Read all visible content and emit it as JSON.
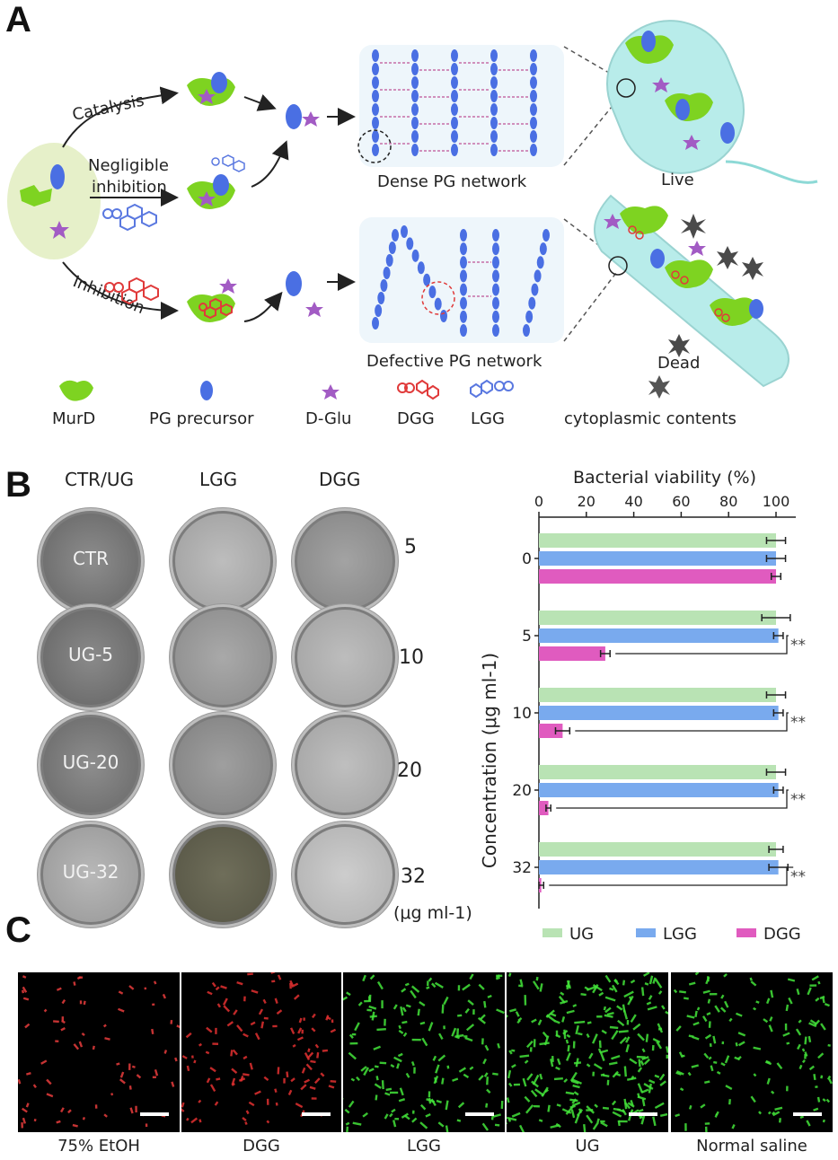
{
  "panelA": {
    "letter": "A",
    "catalysis_label": "Catalysis",
    "negligible_label_1": "Negligible",
    "negligible_label_2": "inhibition",
    "inhibition_label": "Inhibition",
    "dense_network_label": "Dense PG network",
    "defective_network_label": "Defective PG network",
    "live_label": "Live",
    "dead_label": "Dead",
    "legend": [
      {
        "icon": "murd-icon",
        "label": "MurD"
      },
      {
        "icon": "pg-precursor-icon",
        "label": "PG precursor"
      },
      {
        "icon": "d-glu-icon",
        "label": "D-Glu"
      },
      {
        "icon": "dgg-icon",
        "label": "DGG"
      },
      {
        "icon": "lgg-icon",
        "label": "LGG"
      },
      {
        "icon": "cytoplasmic-contents-icon",
        "label": "cytoplasmic contents"
      }
    ],
    "colors": {
      "murd": "#7ed321",
      "precursor": "#4a6fe3",
      "dglu": "#a25bc4",
      "dgg": "#e03a3a",
      "lgg": "#5a78e0",
      "cell": "#b8ecea",
      "network_bg": "#eef6fb"
    }
  },
  "panelB": {
    "letter": "B",
    "column_headers": [
      "CTR/UG",
      "LGG",
      "DGG"
    ],
    "row_concentrations": [
      "5",
      "10",
      "20",
      "32"
    ],
    "unit_label": "(μg ml-1)",
    "plate_labels": [
      "CTR",
      "UG-5",
      "UG-20",
      "UG-32"
    ]
  },
  "chart_data": {
    "type": "bar",
    "orientation": "horizontal",
    "title": "Bacterial viability (%)",
    "xlabel": "Bacterial viability (%)",
    "ylabel": "Concentration (μg ml-1)",
    "xlim": [
      0,
      100
    ],
    "xticks": [
      "0",
      "20",
      "40",
      "60",
      "80",
      "100"
    ],
    "categories": [
      "0",
      "5",
      "10",
      "20",
      "32"
    ],
    "series": [
      {
        "name": "UG",
        "color": "#b9e3b4",
        "values": [
          100,
          100,
          100,
          100,
          100
        ],
        "errors": [
          4,
          6,
          4,
          4,
          3
        ]
      },
      {
        "name": "LGG",
        "color": "#79aaee",
        "values": [
          100,
          101,
          101,
          101,
          101
        ],
        "errors": [
          4,
          2,
          2,
          2,
          4
        ]
      },
      {
        "name": "DGG",
        "color": "#e05bbf",
        "values": [
          100,
          28,
          10,
          4,
          1
        ],
        "errors": [
          2,
          2,
          3,
          1,
          1
        ]
      }
    ],
    "significance": [
      "",
      "**",
      "**",
      "**",
      "**"
    ],
    "legend_position": "bottom"
  },
  "panelC": {
    "letter": "C",
    "labels": [
      "75% EtOH",
      "DGG",
      "LGG",
      "UG",
      "Normal saline"
    ]
  }
}
